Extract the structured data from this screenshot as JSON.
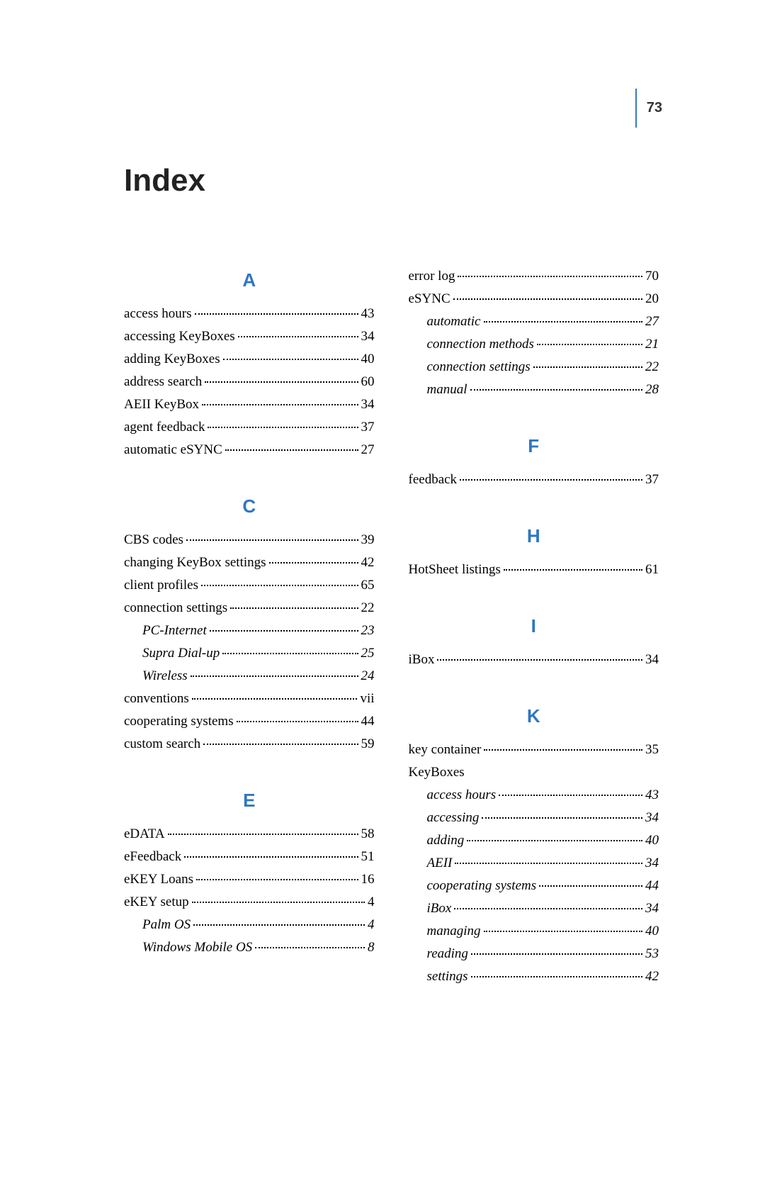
{
  "page_number": "73",
  "title": "Index",
  "colors": {
    "accent": "#2f77c0",
    "rule": "#3a79b7",
    "text": "#000000",
    "background": "#ffffff"
  },
  "typography": {
    "title_font": "Arial",
    "title_size_pt": 32,
    "title_weight": "bold",
    "letter_font": "Arial",
    "letter_size_pt": 19,
    "letter_weight": "bold",
    "body_font": "Times New Roman",
    "body_size_pt": 14
  },
  "columns": [
    {
      "sections": [
        {
          "letter": "A",
          "entries": [
            {
              "term": "access hours",
              "page": "43"
            },
            {
              "term": "accessing KeyBoxes",
              "page": "34"
            },
            {
              "term": "adding KeyBoxes",
              "page": "40"
            },
            {
              "term": "address search",
              "page": "60"
            },
            {
              "term": "AEII KeyBox",
              "page": "34"
            },
            {
              "term": "agent feedback",
              "page": "37"
            },
            {
              "term": "automatic eSYNC",
              "page": "27"
            }
          ]
        },
        {
          "letter": "C",
          "entries": [
            {
              "term": "CBS codes",
              "page": "39"
            },
            {
              "term": "changing KeyBox settings",
              "page": "42"
            },
            {
              "term": "client profiles",
              "page": "65"
            },
            {
              "term": "connection settings",
              "page": "22"
            },
            {
              "term": "PC-Internet",
              "page": "23",
              "sub": true
            },
            {
              "term": "Supra Dial-up",
              "page": "25",
              "sub": true
            },
            {
              "term": "Wireless",
              "page": "24",
              "sub": true
            },
            {
              "term": "conventions",
              "page": "vii"
            },
            {
              "term": "cooperating systems",
              "page": "44"
            },
            {
              "term": "custom search",
              "page": "59"
            }
          ]
        },
        {
          "letter": "E",
          "entries": [
            {
              "term": "eDATA",
              "page": "58"
            },
            {
              "term": "eFeedback",
              "page": "51"
            },
            {
              "term": "eKEY Loans",
              "page": "16"
            },
            {
              "term": "eKEY setup",
              "page": "4"
            },
            {
              "term": "Palm OS",
              "page": "4",
              "sub": true
            },
            {
              "term": "Windows Mobile OS",
              "page": "8",
              "sub": true
            }
          ]
        }
      ]
    },
    {
      "sections": [
        {
          "letter": null,
          "entries": [
            {
              "term": "error log",
              "page": "70"
            },
            {
              "term": "eSYNC",
              "page": "20"
            },
            {
              "term": "automatic",
              "page": "27",
              "sub": true
            },
            {
              "term": "connection methods",
              "page": "21",
              "sub": true
            },
            {
              "term": "connection settings",
              "page": "22",
              "sub": true
            },
            {
              "term": "manual",
              "page": "28",
              "sub": true
            }
          ]
        },
        {
          "letter": "F",
          "entries": [
            {
              "term": "feedback",
              "page": "37"
            }
          ]
        },
        {
          "letter": "H",
          "entries": [
            {
              "term": "HotSheet listings",
              "page": "61"
            }
          ]
        },
        {
          "letter": "I",
          "entries": [
            {
              "term": "iBox",
              "page": "34"
            }
          ]
        },
        {
          "letter": "K",
          "entries": [
            {
              "term": "key container",
              "page": "35"
            },
            {
              "term": "KeyBoxes",
              "page": null
            },
            {
              "term": "access hours",
              "page": "43",
              "sub": true
            },
            {
              "term": "accessing",
              "page": "34",
              "sub": true
            },
            {
              "term": "adding",
              "page": "40",
              "sub": true
            },
            {
              "term": "AEII",
              "page": "34",
              "sub": true
            },
            {
              "term": "cooperating systems",
              "page": "44",
              "sub": true
            },
            {
              "term": "iBox",
              "page": "34",
              "sub": true
            },
            {
              "term": "managing",
              "page": "40",
              "sub": true
            },
            {
              "term": "reading",
              "page": "53",
              "sub": true
            },
            {
              "term": "settings",
              "page": "42",
              "sub": true
            }
          ]
        }
      ]
    }
  ]
}
